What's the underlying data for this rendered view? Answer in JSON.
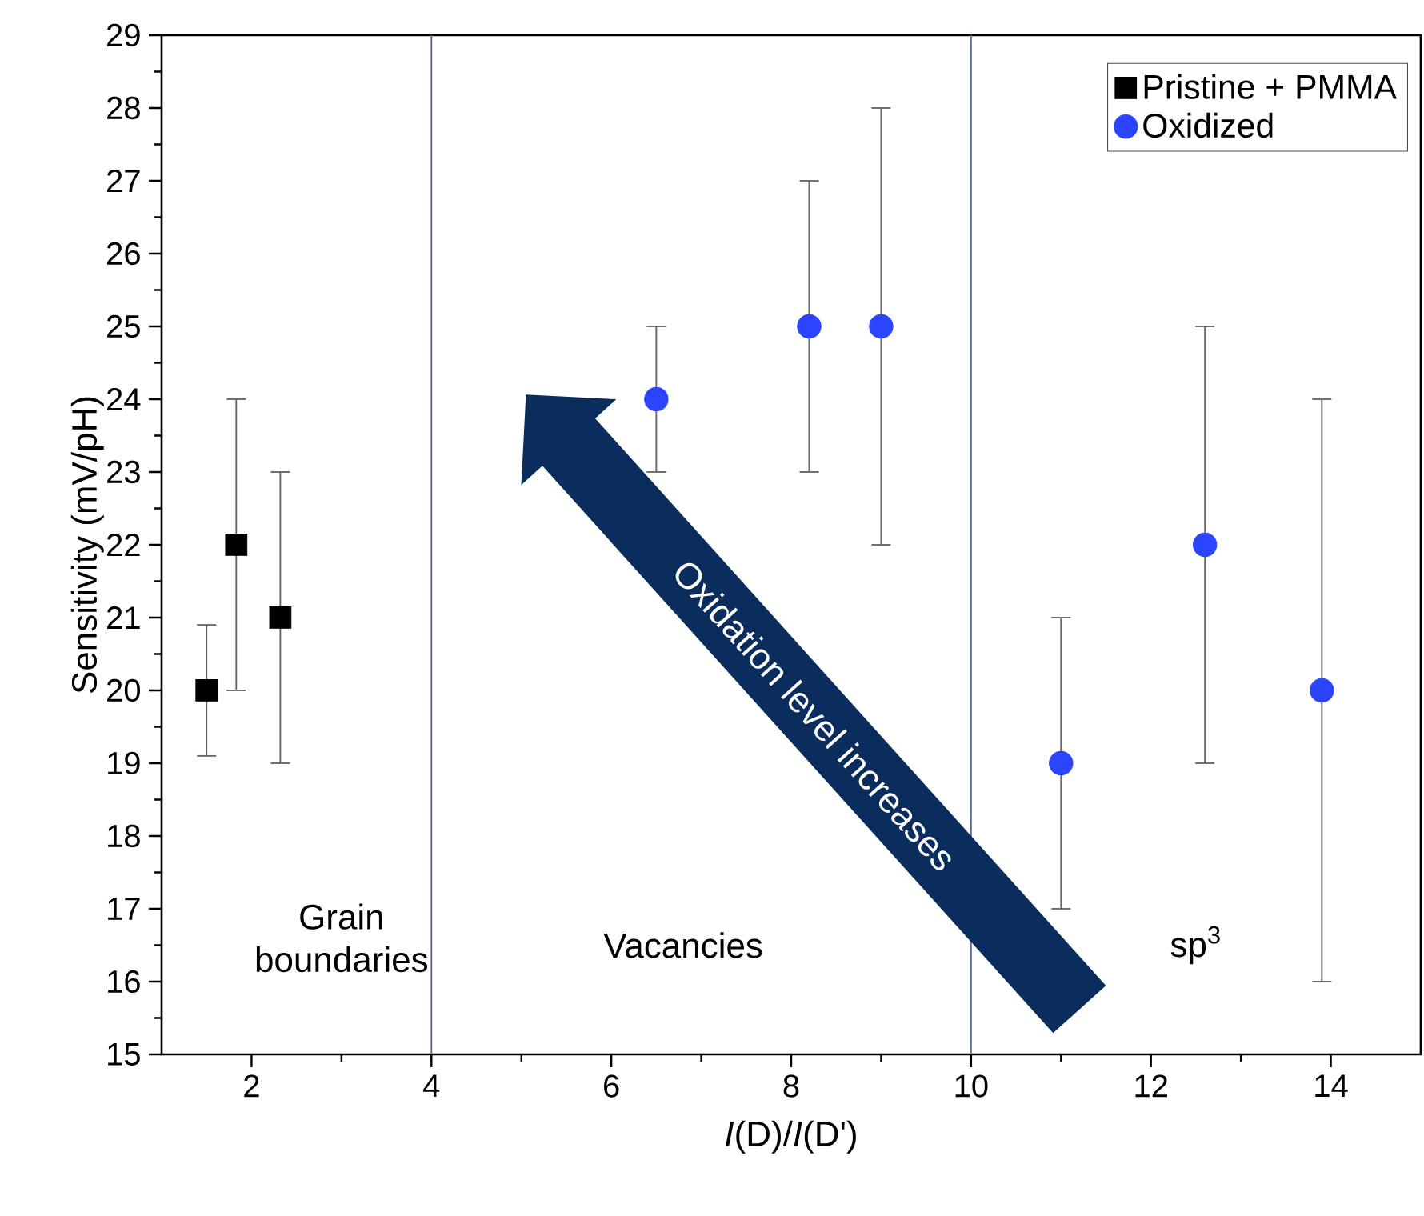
{
  "chart_data": {
    "type": "scatter",
    "xlabel": "*I*(D)/*I*(D')",
    "ylabel": "Sensitivity (mV/pH)",
    "xlim": [
      1,
      15
    ],
    "ylim": [
      15,
      29
    ],
    "xticks": [
      2,
      4,
      6,
      8,
      10,
      12,
      14
    ],
    "yticks": [
      15,
      16,
      17,
      18,
      19,
      20,
      21,
      22,
      23,
      24,
      25,
      26,
      27,
      28,
      29
    ],
    "legend": "top right",
    "series": [
      {
        "name": "Pristine + PMMA",
        "color": "#000000",
        "marker": "square",
        "x": [
          1.5,
          1.83,
          2.32
        ],
        "values": [
          20,
          22,
          21
        ],
        "errors": [
          0.9,
          2,
          2
        ]
      },
      {
        "name": "Oxidized",
        "color": "#2b45ff",
        "marker": "circle",
        "x": [
          6.5,
          8.2,
          9,
          11,
          12.6,
          13.9
        ],
        "values": [
          24,
          25,
          25,
          19,
          22,
          20
        ],
        "errors": [
          1,
          2,
          3,
          2,
          3,
          4
        ]
      }
    ],
    "ref_lines": [
      {
        "axis": "x",
        "value": 4,
        "color": "#5a6b8c"
      },
      {
        "axis": "x",
        "value": 10,
        "color": "#5a6b8c"
      }
    ],
    "annotations": [
      "Grain boundaries",
      "Vacancies",
      "sp$^{3}$",
      "Oxidation level increases"
    ]
  }
}
